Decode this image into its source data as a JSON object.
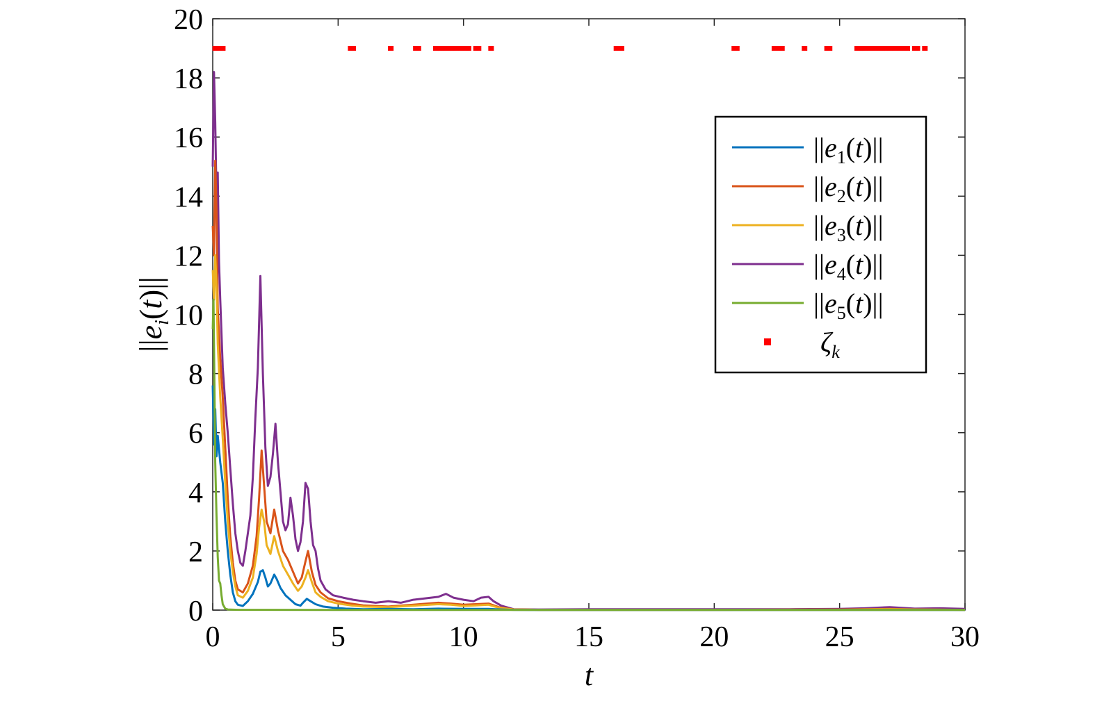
{
  "chart_data": {
    "type": "line",
    "xlabel": "t",
    "ylabel_parts": {
      "pre": "||",
      "var": "e",
      "sub": "i",
      "mid": "(",
      "arg": "t",
      "post": ")||"
    },
    "xlim": [
      0,
      30
    ],
    "ylim": [
      0,
      20
    ],
    "xticks": [
      0,
      5,
      10,
      15,
      20,
      25,
      30
    ],
    "yticks": [
      0,
      2,
      4,
      6,
      8,
      10,
      12,
      14,
      16,
      18,
      20
    ],
    "grid": false,
    "legend_position": "upper-right",
    "series": [
      {
        "name": "||e1(t)||",
        "label_parts": {
          "sub": "1"
        },
        "color": "#0072BD",
        "points": [
          [
            0,
            7.6
          ],
          [
            0.05,
            5.6
          ],
          [
            0.1,
            6.8
          ],
          [
            0.15,
            5.2
          ],
          [
            0.2,
            5.9
          ],
          [
            0.3,
            5.0
          ],
          [
            0.4,
            4.3
          ],
          [
            0.5,
            3.0
          ],
          [
            0.6,
            2.0
          ],
          [
            0.7,
            1.2
          ],
          [
            0.8,
            0.6
          ],
          [
            0.9,
            0.3
          ],
          [
            1.0,
            0.18
          ],
          [
            1.2,
            0.14
          ],
          [
            1.4,
            0.3
          ],
          [
            1.6,
            0.55
          ],
          [
            1.8,
            0.95
          ],
          [
            1.9,
            1.3
          ],
          [
            2.0,
            1.35
          ],
          [
            2.1,
            1.1
          ],
          [
            2.2,
            0.8
          ],
          [
            2.3,
            0.9
          ],
          [
            2.45,
            1.2
          ],
          [
            2.55,
            1.05
          ],
          [
            2.7,
            0.75
          ],
          [
            2.9,
            0.5
          ],
          [
            3.1,
            0.35
          ],
          [
            3.3,
            0.2
          ],
          [
            3.5,
            0.15
          ],
          [
            3.6,
            0.25
          ],
          [
            3.75,
            0.38
          ],
          [
            3.9,
            0.3
          ],
          [
            4.1,
            0.2
          ],
          [
            4.4,
            0.12
          ],
          [
            4.8,
            0.08
          ],
          [
            5.3,
            0.05
          ],
          [
            6,
            0.03
          ],
          [
            7,
            0.04
          ],
          [
            8,
            0.03
          ],
          [
            9,
            0.05
          ],
          [
            10,
            0.04
          ],
          [
            11,
            0.04
          ],
          [
            11.5,
            0.02
          ],
          [
            12,
            0.01
          ],
          [
            13,
            0.005
          ],
          [
            15,
            0.005
          ],
          [
            20,
            0.005
          ],
          [
            25,
            0.005
          ],
          [
            30,
            0.005
          ]
        ]
      },
      {
        "name": "||e2(t)||",
        "label_parts": {
          "sub": "2"
        },
        "color": "#D95319",
        "points": [
          [
            0,
            13.0
          ],
          [
            0.05,
            12.0
          ],
          [
            0.1,
            15.2
          ],
          [
            0.15,
            13.5
          ],
          [
            0.2,
            10.2
          ],
          [
            0.3,
            8.5
          ],
          [
            0.4,
            7.2
          ],
          [
            0.5,
            5.5
          ],
          [
            0.6,
            3.8
          ],
          [
            0.7,
            2.5
          ],
          [
            0.8,
            1.6
          ],
          [
            0.9,
            1.0
          ],
          [
            1.0,
            0.7
          ],
          [
            1.2,
            0.6
          ],
          [
            1.4,
            0.9
          ],
          [
            1.6,
            1.5
          ],
          [
            1.75,
            2.5
          ],
          [
            1.85,
            3.8
          ],
          [
            1.95,
            5.4
          ],
          [
            2.05,
            4.2
          ],
          [
            2.15,
            3.0
          ],
          [
            2.3,
            2.6
          ],
          [
            2.45,
            3.4
          ],
          [
            2.6,
            2.7
          ],
          [
            2.8,
            2.0
          ],
          [
            3.0,
            1.7
          ],
          [
            3.2,
            1.3
          ],
          [
            3.4,
            0.9
          ],
          [
            3.55,
            1.1
          ],
          [
            3.7,
            1.65
          ],
          [
            3.8,
            2.0
          ],
          [
            3.95,
            1.3
          ],
          [
            4.1,
            0.85
          ],
          [
            4.3,
            0.6
          ],
          [
            4.6,
            0.4
          ],
          [
            5,
            0.3
          ],
          [
            5.5,
            0.22
          ],
          [
            6,
            0.16
          ],
          [
            7,
            0.12
          ],
          [
            8,
            0.18
          ],
          [
            9,
            0.25
          ],
          [
            9.5,
            0.22
          ],
          [
            10,
            0.18
          ],
          [
            10.5,
            0.2
          ],
          [
            11,
            0.22
          ],
          [
            11.4,
            0.1
          ],
          [
            12,
            0.02
          ],
          [
            13,
            0.01
          ],
          [
            15,
            0.01
          ],
          [
            20,
            0.01
          ],
          [
            25,
            0.02
          ],
          [
            27,
            0.04
          ],
          [
            28,
            0.02
          ],
          [
            30,
            0.01
          ]
        ]
      },
      {
        "name": "||e3(t)||",
        "label_parts": {
          "sub": "3"
        },
        "color": "#EDB120",
        "points": [
          [
            0,
            11.5
          ],
          [
            0.05,
            10.5
          ],
          [
            0.1,
            12.0
          ],
          [
            0.15,
            11.0
          ],
          [
            0.2,
            9.0
          ],
          [
            0.3,
            7.2
          ],
          [
            0.4,
            5.8
          ],
          [
            0.5,
            4.3
          ],
          [
            0.6,
            3.0
          ],
          [
            0.7,
            2.0
          ],
          [
            0.8,
            1.3
          ],
          [
            0.9,
            0.8
          ],
          [
            1.0,
            0.5
          ],
          [
            1.2,
            0.42
          ],
          [
            1.4,
            0.65
          ],
          [
            1.6,
            1.1
          ],
          [
            1.75,
            1.9
          ],
          [
            1.85,
            2.8
          ],
          [
            1.95,
            3.4
          ],
          [
            2.05,
            3.0
          ],
          [
            2.15,
            2.2
          ],
          [
            2.3,
            1.9
          ],
          [
            2.45,
            2.5
          ],
          [
            2.6,
            2.0
          ],
          [
            2.8,
            1.5
          ],
          [
            3.0,
            1.2
          ],
          [
            3.2,
            0.9
          ],
          [
            3.4,
            0.65
          ],
          [
            3.55,
            0.8
          ],
          [
            3.7,
            1.1
          ],
          [
            3.8,
            1.35
          ],
          [
            3.95,
            0.95
          ],
          [
            4.1,
            0.6
          ],
          [
            4.3,
            0.45
          ],
          [
            4.6,
            0.3
          ],
          [
            5,
            0.22
          ],
          [
            5.5,
            0.16
          ],
          [
            6,
            0.12
          ],
          [
            7,
            0.1
          ],
          [
            8,
            0.15
          ],
          [
            9,
            0.2
          ],
          [
            9.5,
            0.18
          ],
          [
            10,
            0.14
          ],
          [
            10.5,
            0.16
          ],
          [
            11,
            0.18
          ],
          [
            11.4,
            0.08
          ],
          [
            12,
            0.02
          ],
          [
            13,
            0.01
          ],
          [
            15,
            0.01
          ],
          [
            20,
            0.01
          ],
          [
            25,
            0.01
          ],
          [
            27,
            0.03
          ],
          [
            28,
            0.02
          ],
          [
            30,
            0.01
          ]
        ]
      },
      {
        "name": "||e4(t)||",
        "label_parts": {
          "sub": "4"
        },
        "color": "#7E2F8E",
        "points": [
          [
            0,
            15.0
          ],
          [
            0.05,
            18.2
          ],
          [
            0.1,
            16.5
          ],
          [
            0.15,
            14.0
          ],
          [
            0.2,
            14.8
          ],
          [
            0.25,
            11.8
          ],
          [
            0.3,
            10.5
          ],
          [
            0.4,
            8.2
          ],
          [
            0.5,
            7.0
          ],
          [
            0.6,
            6.0
          ],
          [
            0.7,
            4.8
          ],
          [
            0.8,
            3.6
          ],
          [
            0.9,
            2.6
          ],
          [
            1.0,
            2.0
          ],
          [
            1.1,
            1.6
          ],
          [
            1.2,
            1.5
          ],
          [
            1.3,
            2.0
          ],
          [
            1.4,
            2.6
          ],
          [
            1.5,
            3.2
          ],
          [
            1.6,
            4.5
          ],
          [
            1.7,
            6.5
          ],
          [
            1.8,
            8.2
          ],
          [
            1.9,
            11.3
          ],
          [
            2.0,
            8.0
          ],
          [
            2.1,
            5.5
          ],
          [
            2.2,
            4.2
          ],
          [
            2.3,
            4.5
          ],
          [
            2.4,
            5.3
          ],
          [
            2.5,
            6.3
          ],
          [
            2.6,
            5.0
          ],
          [
            2.7,
            4.0
          ],
          [
            2.8,
            3.0
          ],
          [
            2.9,
            2.7
          ],
          [
            3.0,
            2.9
          ],
          [
            3.1,
            3.8
          ],
          [
            3.2,
            3.2
          ],
          [
            3.3,
            2.4
          ],
          [
            3.4,
            2.0
          ],
          [
            3.5,
            2.3
          ],
          [
            3.6,
            3.0
          ],
          [
            3.7,
            4.3
          ],
          [
            3.8,
            4.1
          ],
          [
            3.9,
            3.0
          ],
          [
            4.0,
            2.2
          ],
          [
            4.1,
            2.0
          ],
          [
            4.2,
            1.4
          ],
          [
            4.3,
            1.0
          ],
          [
            4.5,
            0.7
          ],
          [
            4.8,
            0.5
          ],
          [
            5.2,
            0.42
          ],
          [
            5.6,
            0.35
          ],
          [
            6,
            0.3
          ],
          [
            6.5,
            0.25
          ],
          [
            7,
            0.3
          ],
          [
            7.5,
            0.25
          ],
          [
            8,
            0.35
          ],
          [
            8.5,
            0.4
          ],
          [
            9,
            0.45
          ],
          [
            9.3,
            0.55
          ],
          [
            9.6,
            0.42
          ],
          [
            10,
            0.35
          ],
          [
            10.4,
            0.3
          ],
          [
            10.7,
            0.42
          ],
          [
            11,
            0.45
          ],
          [
            11.2,
            0.3
          ],
          [
            11.5,
            0.15
          ],
          [
            12,
            0.03
          ],
          [
            13,
            0.02
          ],
          [
            15,
            0.03
          ],
          [
            17,
            0.03
          ],
          [
            20,
            0.03
          ],
          [
            23,
            0.03
          ],
          [
            25,
            0.04
          ],
          [
            26,
            0.06
          ],
          [
            27,
            0.1
          ],
          [
            28,
            0.05
          ],
          [
            29,
            0.06
          ],
          [
            30,
            0.04
          ]
        ]
      },
      {
        "name": "||e5(t)||",
        "label_parts": {
          "sub": "5"
        },
        "color": "#77AC30",
        "points": [
          [
            0,
            9.5
          ],
          [
            0.03,
            10.5
          ],
          [
            0.07,
            7.5
          ],
          [
            0.1,
            5.0
          ],
          [
            0.15,
            3.2
          ],
          [
            0.2,
            1.8
          ],
          [
            0.25,
            1.0
          ],
          [
            0.3,
            0.9
          ],
          [
            0.35,
            0.5
          ],
          [
            0.4,
            0.2
          ],
          [
            0.5,
            0.05
          ],
          [
            0.6,
            0.02
          ],
          [
            1,
            0.01
          ],
          [
            5,
            0.005
          ],
          [
            10,
            0.005
          ],
          [
            15,
            0.005
          ],
          [
            20,
            0.005
          ],
          [
            25,
            0.005
          ],
          [
            30,
            0.005
          ]
        ]
      }
    ],
    "impulses": {
      "name": "ζk",
      "label_parts": {
        "main": "ζ",
        "sub": "k"
      },
      "color": "#FF0000",
      "y": 19,
      "t": [
        0.1,
        0.25,
        0.4,
        5.5,
        5.6,
        7.1,
        8.1,
        8.2,
        8.9,
        9.0,
        9.1,
        9.2,
        9.3,
        9.4,
        9.5,
        9.6,
        9.7,
        9.9,
        10.1,
        10.2,
        10.5,
        10.6,
        11.1,
        16.1,
        16.2,
        16.3,
        20.8,
        20.9,
        22.4,
        22.6,
        22.7,
        23.6,
        24.5,
        24.6,
        25.7,
        25.8,
        25.9,
        26.0,
        26.2,
        26.4,
        26.6,
        26.7,
        26.8,
        26.9,
        27.0,
        27.2,
        27.4,
        27.6,
        27.7,
        28.0,
        28.1,
        28.4
      ]
    }
  }
}
